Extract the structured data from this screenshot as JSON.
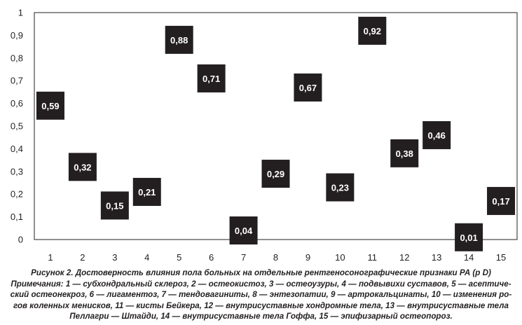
{
  "chart_data": {
    "type": "scatter",
    "categories": [
      "1",
      "2",
      "3",
      "4",
      "5",
      "6",
      "7",
      "8",
      "9",
      "10",
      "11",
      "12",
      "13",
      "14",
      "15"
    ],
    "values": [
      0.59,
      0.32,
      0.15,
      0.21,
      0.88,
      0.71,
      0.04,
      0.29,
      0.67,
      0.23,
      0.92,
      0.38,
      0.46,
      0.01,
      0.17
    ],
    "data_labels": [
      "0,59",
      "0,32",
      "0,15",
      "0,21",
      "0,88",
      "0,71",
      "0,04",
      "0,29",
      "0,67",
      "0,23",
      "0,92",
      "0,38",
      "0,46",
      "0,01",
      "0,17"
    ],
    "y_ticks": [
      "0",
      "0,1",
      "0,2",
      "0,3",
      "0,4",
      "0,5",
      "0,6",
      "0,7",
      "0,8",
      "0,9",
      "1"
    ],
    "ylim": [
      0,
      1
    ],
    "grid": false,
    "legend": "none",
    "marker_color": "#231f20",
    "label_color": "#ffffff",
    "title": "",
    "xlabel": "",
    "ylabel": ""
  },
  "caption": {
    "line1": "Рисунок 2. Достоверность влияния пола больных на отдельные рентгеносонографические признаки РА (р D)",
    "line2": "Примечания: 1 — субхондральный склероз, 2 — остеокистоз, 3 — остеоузуры, 4 — подвывихи суставов, 5 — асептиче-",
    "line3": "ский остеонекроз, 6 — лигаментоз, 7 — тендовагиниты, 8 — энтезопатии, 9 — артрокальцинаты, 10 — изменения ро-",
    "line4": "гов коленных менисков, 11 — кисты Бейкера, 12 — внутрисуставные хондромные тела, 13 — внутрисуставные тела",
    "line5": "Пеллагри — Штайди, 14 — внутрисуставные тела Гоффа, 15 — эпифизарный остеопороз."
  }
}
